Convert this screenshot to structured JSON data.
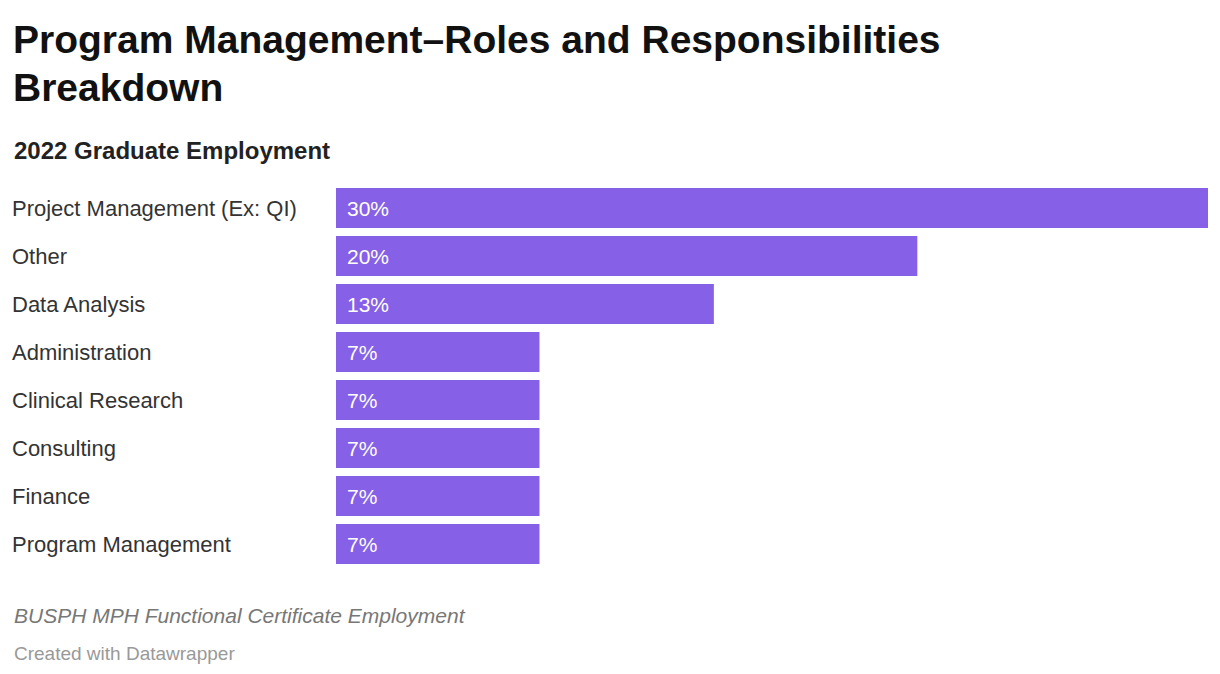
{
  "chart_data": {
    "type": "bar",
    "title": "Program Management–Roles and Responsibilities Breakdown",
    "subtitle": "2022 Graduate Employment",
    "source": "BUSPH MPH Functional Certificate Employment",
    "credit": "Created with Datawrapper",
    "orientation": "horizontal",
    "categories": [
      "Project Management (Ex: QI)",
      "Other",
      "Data Analysis",
      "Administration",
      "Clinical Research",
      "Consulting",
      "Finance",
      "Program Management"
    ],
    "values": [
      30,
      20,
      13,
      7,
      7,
      7,
      7,
      7
    ],
    "value_labels": [
      "30%",
      "20%",
      "13%",
      "7%",
      "7%",
      "7%",
      "7%",
      "7%"
    ],
    "color": "#8660e7",
    "xlim": [
      0,
      30
    ],
    "grid": false,
    "data_labels": true,
    "tick_labels": "y"
  }
}
